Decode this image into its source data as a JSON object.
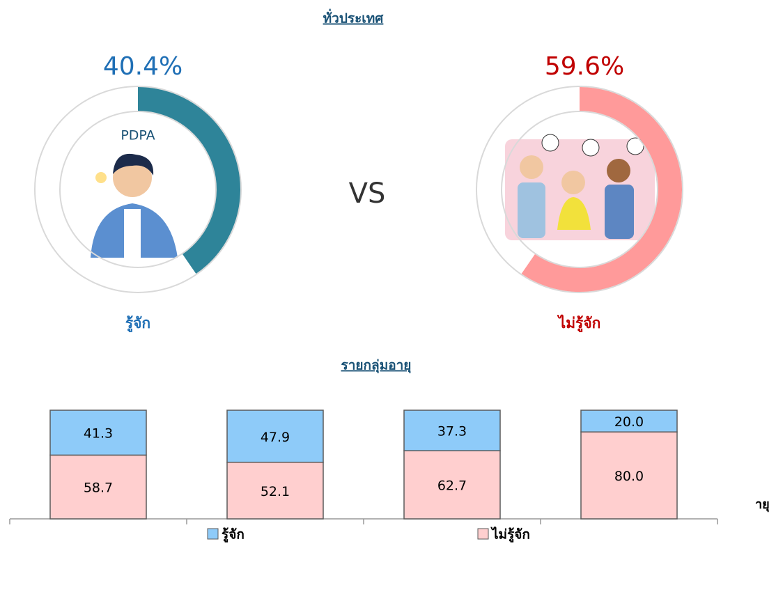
{
  "chart_data": [
    {
      "type": "donut",
      "title": "ทั่วประเทศ",
      "values": [
        40.4
      ],
      "value_labels": [
        "40.4%"
      ],
      "label": "รู้จัก",
      "inner_text": "PDPA",
      "color": "#2e8499",
      "label_color": "#1f6fb5"
    },
    {
      "type": "donut",
      "values": [
        59.6
      ],
      "value_labels": [
        "59.6%"
      ],
      "label": "ไม่รู้จัก",
      "color": "#ff9a9a",
      "label_color": "#c00000"
    },
    {
      "type": "stacked-bar",
      "title": "รายกลุ่มอายุ",
      "x_label": "ายุ",
      "categories": [
        null,
        null,
        null,
        null
      ],
      "series": [
        {
          "name": "รู้จัก",
          "color": "#8ecbf9",
          "values": [
            41.3,
            47.9,
            37.3,
            20.0
          ],
          "value_labels": [
            "41.3",
            "47.9",
            "37.3",
            "20.0"
          ]
        },
        {
          "name": "ไม่รู้จัก",
          "color": "#ffcfcf",
          "values": [
            58.7,
            52.1,
            62.7,
            80.0
          ],
          "value_labels": [
            "58.7",
            "52.1",
            "62.7",
            "80.0"
          ]
        }
      ],
      "ylim": [
        0,
        100
      ],
      "legend": "bottom"
    }
  ],
  "vs": "VS"
}
